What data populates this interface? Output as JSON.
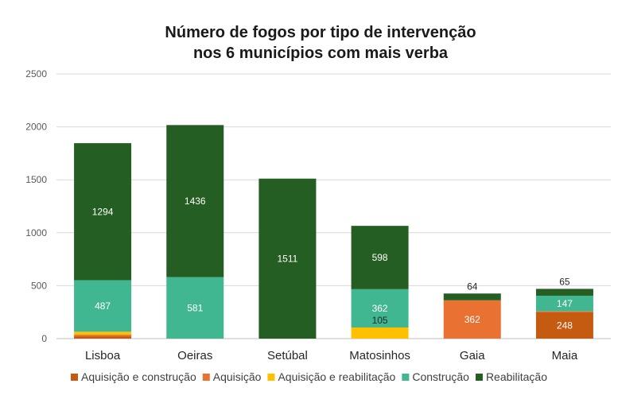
{
  "chart_data": {
    "type": "bar",
    "stacked": true,
    "title_lines": [
      "Número de fogos por tipo de intervenção",
      "nos 6 municípios com mais verba"
    ],
    "xlabel": "",
    "ylabel": "",
    "ylim": [
      0,
      2500
    ],
    "yticks": [
      "0",
      "500",
      "1000",
      "1500",
      "2000",
      "2500"
    ],
    "grid": true,
    "legend_position": "bottom",
    "categories": [
      "Lisboa",
      "Oeiras",
      "Setúbal",
      "Matosinhos",
      "Gaia",
      "Maia"
    ],
    "series": [
      {
        "name": "Aquisição e construção",
        "color": "#C55A11",
        "values": [
          22,
          0,
          0,
          0,
          0,
          248
        ],
        "labels": [
          "",
          "",
          "",
          "",
          "",
          "248"
        ]
      },
      {
        "name": "Aquisição",
        "color": "#E97132",
        "values": [
          15,
          0,
          0,
          0,
          362,
          10
        ],
        "labels": [
          "",
          "",
          "",
          "",
          "362",
          ""
        ]
      },
      {
        "name": "Aquisição e reabilitação",
        "color": "#FFC000",
        "values": [
          28,
          0,
          0,
          105,
          0,
          0
        ],
        "labels": [
          "",
          "",
          "",
          "105",
          "",
          ""
        ]
      },
      {
        "name": "Construção",
        "color": "#41B791",
        "values": [
          487,
          581,
          0,
          362,
          0,
          147
        ],
        "labels": [
          "487",
          "581",
          "",
          "362",
          "",
          "147"
        ]
      },
      {
        "name": "Reabilitação",
        "color": "#255E22",
        "values": [
          1294,
          1436,
          1511,
          598,
          64,
          65
        ],
        "labels": [
          "1294",
          "1436",
          "1511",
          "598",
          "64",
          "65"
        ]
      }
    ]
  }
}
